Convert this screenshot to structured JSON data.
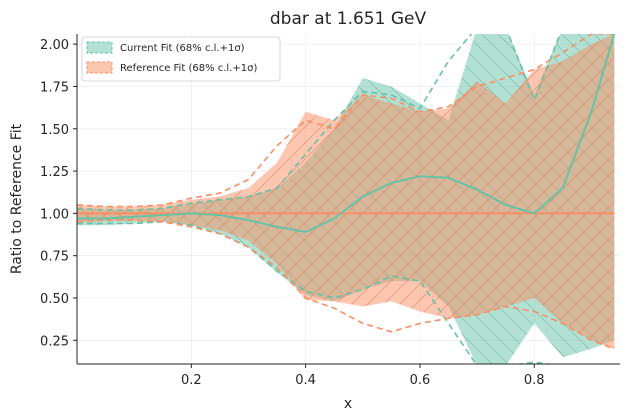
{
  "chart_data": {
    "type": "line",
    "title": "dbar at 1.651 GeV",
    "xlabel": "x",
    "ylabel": "Ratio to Reference Fit",
    "xlim": [
      0.0,
      0.95
    ],
    "ylim": [
      0.11,
      2.06
    ],
    "x_ticks": [
      0.2,
      0.4,
      0.6,
      0.8
    ],
    "x_tick_labels": [
      "0.2",
      "0.4",
      "0.6",
      "0.8"
    ],
    "y_ticks": [
      0.25,
      0.5,
      0.75,
      1.0,
      1.25,
      1.5,
      1.75,
      2.0
    ],
    "y_tick_labels": [
      "0.25",
      "0.50",
      "0.75",
      "1.00",
      "1.25",
      "1.50",
      "1.75",
      "2.00"
    ],
    "grid": true,
    "legend_position": "top-left",
    "x": [
      0.0,
      0.05,
      0.1,
      0.15,
      0.2,
      0.25,
      0.3,
      0.35,
      0.4,
      0.45,
      0.5,
      0.55,
      0.6,
      0.65,
      0.7,
      0.75,
      0.8,
      0.85,
      0.9,
      0.94
    ],
    "series": [
      {
        "name": "Current Fit (68% c.l.+1σ)",
        "color": "#66c2a5",
        "central": [
          0.97,
          0.97,
          0.98,
          0.99,
          1.0,
          0.99,
          0.96,
          0.92,
          0.89,
          0.97,
          1.1,
          1.18,
          1.22,
          1.21,
          1.14,
          1.05,
          1.0,
          1.15,
          1.6,
          2.06
        ],
        "band_upper": [
          1.03,
          1.02,
          1.02,
          1.03,
          1.06,
          1.08,
          1.1,
          1.15,
          1.3,
          1.5,
          1.8,
          1.75,
          1.65,
          1.55,
          2.1,
          2.1,
          1.7,
          2.1,
          2.1,
          2.1
        ],
        "band_lower": [
          0.93,
          0.93,
          0.94,
          0.95,
          0.93,
          0.88,
          0.8,
          0.65,
          0.52,
          0.48,
          0.55,
          0.6,
          0.6,
          0.45,
          0.1,
          0.1,
          0.35,
          0.15,
          0.2,
          0.25
        ],
        "upper_dashed": [
          1.03,
          1.02,
          1.02,
          1.03,
          1.06,
          1.08,
          1.1,
          1.15,
          1.35,
          1.55,
          1.72,
          1.7,
          1.62,
          1.9,
          2.1,
          2.1,
          1.67,
          2.1,
          2.1,
          2.1
        ],
        "lower_dashed": [
          0.94,
          0.94,
          0.94,
          0.95,
          0.93,
          0.88,
          0.8,
          0.66,
          0.54,
          0.5,
          0.55,
          0.63,
          0.6,
          0.35,
          0.1,
          0.1,
          0.12,
          0.1,
          0.1,
          0.1
        ]
      },
      {
        "name": "Reference Fit (68% c.l.+1σ)",
        "color": "#fc8d62",
        "central": [
          1.0,
          1.0,
          1.0,
          1.0,
          1.0,
          1.0,
          1.0,
          1.0,
          1.0,
          1.0,
          1.0,
          1.0,
          1.0,
          1.0,
          1.0,
          1.0,
          1.0,
          1.0,
          1.0,
          1.0
        ],
        "band_upper": [
          1.05,
          1.04,
          1.04,
          1.05,
          1.08,
          1.1,
          1.15,
          1.3,
          1.6,
          1.55,
          1.7,
          1.65,
          1.6,
          1.62,
          1.78,
          1.65,
          1.85,
          1.9,
          2.0,
          2.06
        ],
        "band_lower": [
          0.95,
          0.96,
          0.96,
          0.95,
          0.93,
          0.9,
          0.84,
          0.7,
          0.49,
          0.48,
          0.45,
          0.48,
          0.42,
          0.38,
          0.4,
          0.45,
          0.5,
          0.35,
          0.25,
          0.2
        ],
        "upper_dashed": [
          1.05,
          1.04,
          1.04,
          1.05,
          1.09,
          1.12,
          1.2,
          1.4,
          1.55,
          1.5,
          1.7,
          1.68,
          1.6,
          1.63,
          1.75,
          1.8,
          1.85,
          1.95,
          2.06,
          2.06
        ],
        "lower_dashed": [
          0.95,
          0.96,
          0.96,
          0.95,
          0.92,
          0.88,
          0.8,
          0.68,
          0.5,
          0.44,
          0.35,
          0.3,
          0.35,
          0.38,
          0.4,
          0.45,
          0.42,
          0.35,
          0.25,
          0.2
        ]
      }
    ]
  }
}
